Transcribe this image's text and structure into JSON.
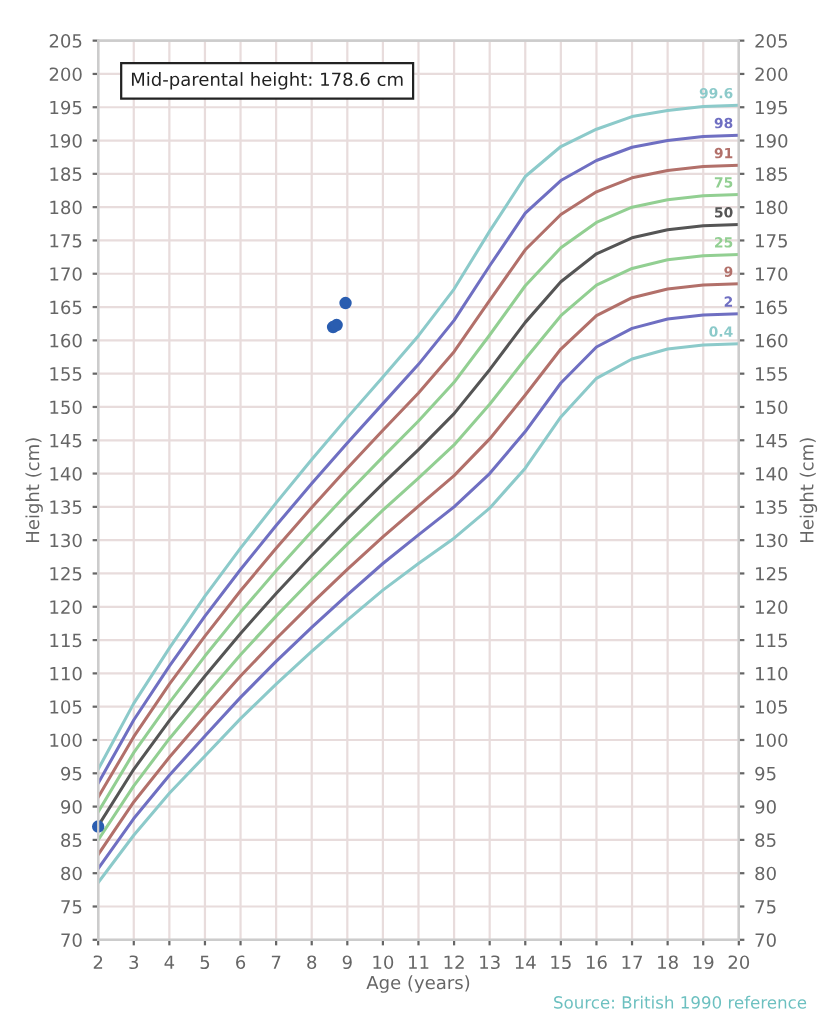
{
  "chart_data": {
    "type": "line",
    "xlabel": "Age (years)",
    "ylabel": "Height (cm)",
    "y2label": "Height (cm)",
    "x": [
      2,
      3,
      4,
      5,
      6,
      7,
      8,
      9,
      10,
      11,
      12,
      13,
      14,
      15,
      16,
      17,
      18,
      19,
      20
    ],
    "series": [
      {
        "name": "99.6",
        "color": "#8ccaca",
        "values": [
          95.6,
          105.5,
          113.8,
          121.6,
          128.8,
          135.6,
          142.1,
          148.4,
          154.5,
          160.7,
          167.7,
          176.4,
          184.6,
          189.1,
          191.7,
          193.6,
          194.5,
          195.1,
          195.3
        ]
      },
      {
        "name": "98",
        "color": "#6f6fc2",
        "values": [
          93.5,
          103.0,
          111.1,
          118.6,
          125.6,
          132.2,
          138.5,
          144.6,
          150.5,
          156.4,
          163.0,
          171.2,
          179.1,
          184.0,
          187.0,
          189.0,
          190.0,
          190.6,
          190.8
        ]
      },
      {
        "name": "91",
        "color": "#b2706a",
        "values": [
          91.4,
          100.5,
          108.4,
          115.6,
          122.4,
          128.8,
          134.9,
          140.8,
          146.5,
          152.1,
          158.3,
          166.0,
          173.6,
          178.9,
          182.3,
          184.4,
          185.5,
          186.1,
          186.3
        ]
      },
      {
        "name": "75",
        "color": "#92cf92",
        "values": [
          89.2,
          98.1,
          105.6,
          112.6,
          119.2,
          125.4,
          131.3,
          137.0,
          142.5,
          147.9,
          153.7,
          160.8,
          168.2,
          173.9,
          177.7,
          180.0,
          181.1,
          181.7,
          181.9
        ]
      },
      {
        "name": "50",
        "color": "#555555",
        "values": [
          87.1,
          95.6,
          102.9,
          109.6,
          116.0,
          122.0,
          127.7,
          133.2,
          138.5,
          143.6,
          149.0,
          155.6,
          162.7,
          168.8,
          173.0,
          175.4,
          176.6,
          177.2,
          177.4
        ]
      },
      {
        "name": "25",
        "color": "#92cf92",
        "values": [
          85.0,
          93.1,
          100.2,
          106.6,
          112.8,
          118.6,
          124.1,
          129.4,
          134.5,
          139.3,
          144.3,
          150.4,
          157.2,
          163.7,
          168.3,
          170.8,
          172.1,
          172.7,
          172.9
        ]
      },
      {
        "name": "9",
        "color": "#b2706a",
        "values": [
          82.8,
          90.7,
          97.4,
          103.6,
          109.6,
          115.2,
          120.5,
          125.6,
          130.5,
          135.1,
          139.7,
          145.2,
          151.8,
          158.7,
          163.7,
          166.4,
          167.7,
          168.3,
          168.5
        ]
      },
      {
        "name": "2",
        "color": "#6f6fc2",
        "values": [
          80.7,
          88.2,
          94.7,
          100.6,
          106.4,
          111.8,
          116.9,
          121.8,
          126.5,
          130.8,
          135.0,
          140.0,
          146.3,
          153.6,
          159.0,
          161.8,
          163.2,
          163.8,
          164.0
        ]
      },
      {
        "name": "0.4",
        "color": "#8ccaca",
        "values": [
          78.6,
          85.7,
          92.0,
          97.6,
          103.2,
          108.4,
          113.3,
          118.0,
          122.5,
          126.5,
          130.3,
          134.8,
          140.8,
          148.5,
          154.3,
          157.2,
          158.7,
          159.3,
          159.5
        ]
      },
      {
        "type": "scatter",
        "marker": "circle",
        "color": "#2a5db0",
        "x": [
          2.0,
          8.6,
          8.7,
          8.95
        ],
        "values": [
          87.0,
          162.0,
          162.3,
          165.6
        ]
      }
    ],
    "xlim": [
      2,
      20
    ],
    "xticks": [
      2,
      3,
      4,
      5,
      6,
      7,
      8,
      9,
      10,
      11,
      12,
      13,
      14,
      15,
      16,
      17,
      18,
      19,
      20
    ],
    "ylim": [
      70,
      205
    ],
    "yticks": [
      70,
      75,
      80,
      85,
      90,
      95,
      100,
      105,
      110,
      115,
      120,
      125,
      130,
      135,
      140,
      145,
      150,
      155,
      160,
      165,
      170,
      175,
      180,
      185,
      190,
      195,
      200,
      205
    ],
    "y2lim": [
      70,
      205
    ],
    "y2ticks": [
      70,
      75,
      80,
      85,
      90,
      95,
      100,
      105,
      110,
      115,
      120,
      125,
      130,
      135,
      140,
      145,
      150,
      155,
      160,
      165,
      170,
      175,
      180,
      185,
      190,
      195,
      200,
      205
    ],
    "grid": true,
    "line_style": "solid",
    "legend": false,
    "annotations": [
      "Mid-parental height: 178.6 cm",
      "Source: British 1990 reference"
    ]
  }
}
